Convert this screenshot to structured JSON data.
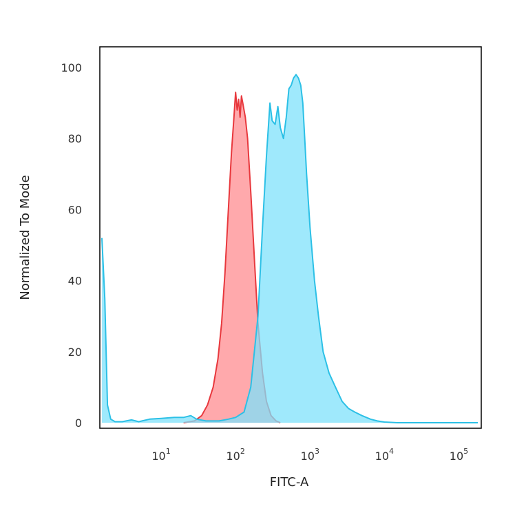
{
  "chart_data": {
    "type": "area",
    "title": "",
    "xlabel": "FITC-A",
    "ylabel": "Normalized To Mode",
    "xscale": "log",
    "xlim": [
      1.5,
      200000
    ],
    "ylim": [
      0,
      100
    ],
    "yticks": [
      0,
      20,
      40,
      60,
      80,
      100
    ],
    "ytick_labels": [
      "0",
      "20",
      "40",
      "60",
      "80",
      "100"
    ],
    "xticks": [
      10,
      100,
      1000,
      10000,
      100000
    ],
    "xtick_labels": [
      {
        "base": "10",
        "exp": "1"
      },
      {
        "base": "10",
        "exp": "2"
      },
      {
        "base": "10",
        "exp": "3"
      },
      {
        "base": "10",
        "exp": "4"
      },
      {
        "base": "10",
        "exp": "5"
      }
    ],
    "grid": false,
    "legend": "none",
    "series": [
      {
        "color": "#e8383d",
        "fill": "#ff9a9e",
        "x": [
          20,
          28,
          35,
          42,
          50,
          58,
          65,
          72,
          80,
          88,
          95,
          100,
          105,
          110,
          115,
          120,
          125,
          135,
          145,
          160,
          180,
          200,
          230,
          260,
          300,
          350,
          400
        ],
        "y": [
          0,
          0.5,
          2,
          5,
          10,
          18,
          28,
          42,
          60,
          76,
          86,
          93,
          88,
          91,
          86,
          92,
          90,
          86,
          80,
          65,
          45,
          28,
          14,
          6,
          2,
          0.5,
          0
        ]
      },
      {
        "color": "#2cc0e6",
        "fill": "#7fe2fb",
        "x": [
          1.6,
          1.75,
          1.9,
          2.1,
          2.4,
          3,
          4,
          5,
          7,
          10,
          15,
          20,
          25,
          30,
          40,
          50,
          60,
          80,
          100,
          130,
          160,
          200,
          230,
          260,
          290,
          310,
          340,
          370,
          400,
          440,
          480,
          520,
          560,
          600,
          650,
          700,
          750,
          800,
          850,
          900,
          1000,
          1150,
          1300,
          1500,
          1800,
          2200,
          2700,
          3300,
          4000,
          5000,
          6500,
          8000,
          10000,
          15000,
          30000,
          100000,
          180000
        ],
        "y": [
          52,
          35,
          5,
          1,
          0.3,
          0.3,
          0.8,
          0.3,
          1,
          1.2,
          1.5,
          1.5,
          2,
          1,
          0.5,
          0.5,
          0.5,
          1,
          1.5,
          3,
          10,
          30,
          55,
          75,
          90,
          85,
          84,
          89,
          83,
          80,
          86,
          94,
          95,
          97,
          98,
          97,
          95,
          90,
          80,
          70,
          55,
          40,
          30,
          20,
          14,
          10,
          6,
          4,
          3,
          2,
          1,
          0.5,
          0.2,
          0,
          0,
          0,
          0
        ]
      }
    ]
  }
}
